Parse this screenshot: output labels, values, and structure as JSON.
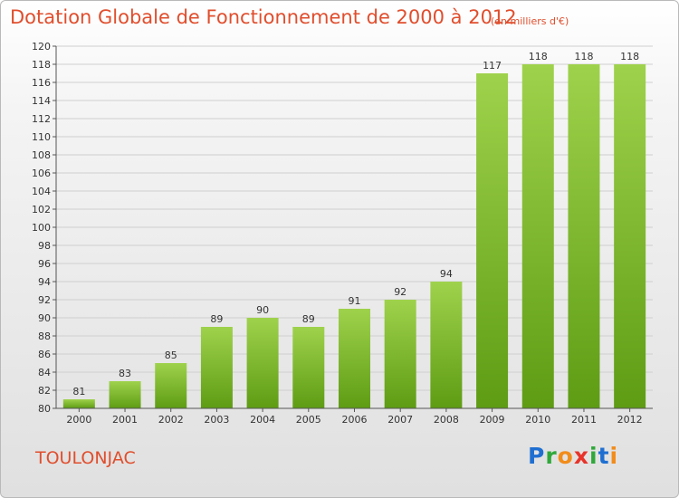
{
  "title": "Dotation Globale de Fonctionnement de 2000 à 2012",
  "subtitle": "(en milliers d'€)",
  "commune": "TOULONJAC",
  "logo": {
    "letters": [
      "P",
      "r",
      "o",
      "x",
      "i",
      "t",
      "i"
    ],
    "colors": [
      "#1f6fd1",
      "#2fa83a",
      "#f28c1a",
      "#e8332a",
      "#2fa83a",
      "#1f6fd1",
      "#f28c1a"
    ]
  },
  "colors": {
    "title": "#e04e2d",
    "bar_light": "#9fd24c",
    "bar_dark": "#5e9c14",
    "axis": "#555555",
    "grid": "#cfcfcf"
  },
  "chart_data": {
    "type": "bar",
    "title": "Dotation Globale de Fonctionnement de 2000 à 2012",
    "subtitle": "(en milliers d'€)",
    "categories": [
      "2000",
      "2001",
      "2002",
      "2003",
      "2004",
      "2005",
      "2006",
      "2007",
      "2008",
      "2009",
      "2010",
      "2011",
      "2012"
    ],
    "values": [
      81,
      83,
      85,
      89,
      90,
      89,
      91,
      92,
      94,
      117,
      118,
      118,
      118
    ],
    "data_labels": [
      "81",
      "83",
      "85",
      "89",
      "90",
      "89",
      "91",
      "92",
      "94",
      "117",
      "118",
      "118",
      "118"
    ],
    "ylim": [
      80,
      120
    ],
    "yticks": [
      80,
      82,
      84,
      86,
      88,
      90,
      92,
      94,
      96,
      98,
      100,
      102,
      104,
      106,
      108,
      110,
      112,
      114,
      116,
      118,
      120
    ],
    "xlabel": "",
    "ylabel": "",
    "grid": true
  }
}
